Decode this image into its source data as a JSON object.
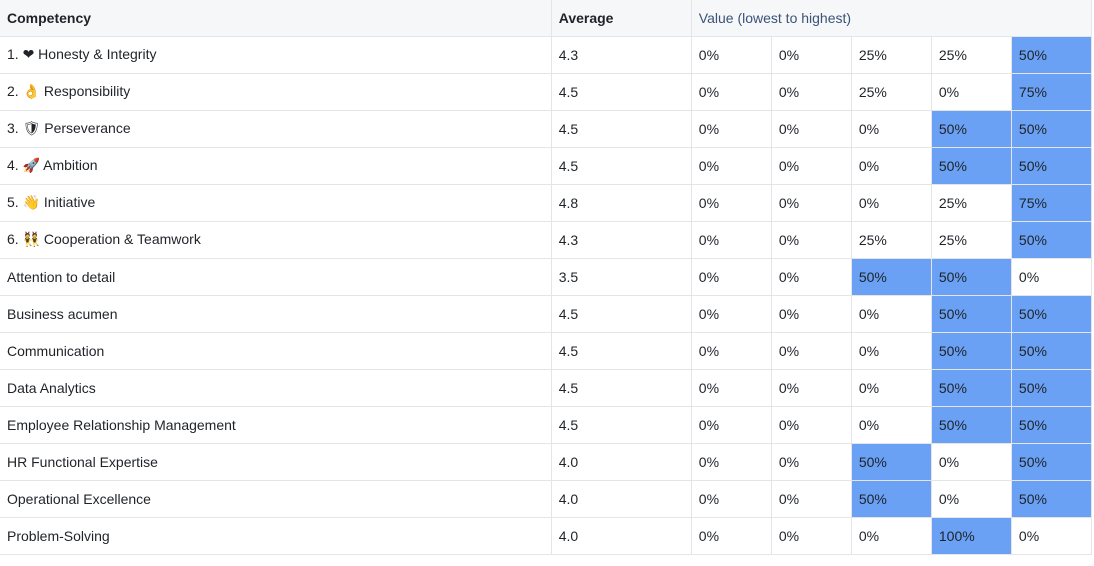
{
  "header": {
    "competency": "Competency",
    "average": "Average",
    "value": "Value (lowest to highest)"
  },
  "colors": {
    "highlight": "#6aa1f4",
    "header_bg": "#f6f7f9",
    "border": "#e3e5e8"
  },
  "rows": [
    {
      "name": "1. ❤ Honesty & Integrity",
      "avg": "4.3",
      "values": [
        "0%",
        "0%",
        "25%",
        "25%",
        "50%"
      ],
      "hl": [
        false,
        false,
        false,
        false,
        true
      ]
    },
    {
      "name": "2. 👌 Responsibility",
      "avg": "4.5",
      "values": [
        "0%",
        "0%",
        "25%",
        "0%",
        "75%"
      ],
      "hl": [
        false,
        false,
        false,
        false,
        true
      ]
    },
    {
      "name": "3. 🛡 Perseverance",
      "avg": "4.5",
      "values": [
        "0%",
        "0%",
        "0%",
        "50%",
        "50%"
      ],
      "hl": [
        false,
        false,
        false,
        true,
        true
      ]
    },
    {
      "name": "4. 🚀 Ambition",
      "avg": "4.5",
      "values": [
        "0%",
        "0%",
        "0%",
        "50%",
        "50%"
      ],
      "hl": [
        false,
        false,
        false,
        true,
        true
      ]
    },
    {
      "name": "5. 👋 Initiative",
      "avg": "4.8",
      "values": [
        "0%",
        "0%",
        "0%",
        "25%",
        "75%"
      ],
      "hl": [
        false,
        false,
        false,
        false,
        true
      ]
    },
    {
      "name": "6. 👯 Cooperation & Teamwork",
      "avg": "4.3",
      "values": [
        "0%",
        "0%",
        "25%",
        "25%",
        "50%"
      ],
      "hl": [
        false,
        false,
        false,
        false,
        true
      ]
    },
    {
      "name": "Attention to detail",
      "avg": "3.5",
      "values": [
        "0%",
        "0%",
        "50%",
        "50%",
        "0%"
      ],
      "hl": [
        false,
        false,
        true,
        true,
        false
      ]
    },
    {
      "name": "Business acumen",
      "avg": "4.5",
      "values": [
        "0%",
        "0%",
        "0%",
        "50%",
        "50%"
      ],
      "hl": [
        false,
        false,
        false,
        true,
        true
      ]
    },
    {
      "name": "Communication",
      "avg": "4.5",
      "values": [
        "0%",
        "0%",
        "0%",
        "50%",
        "50%"
      ],
      "hl": [
        false,
        false,
        false,
        true,
        true
      ]
    },
    {
      "name": "Data Analytics",
      "avg": "4.5",
      "values": [
        "0%",
        "0%",
        "0%",
        "50%",
        "50%"
      ],
      "hl": [
        false,
        false,
        false,
        true,
        true
      ]
    },
    {
      "name": "Employee Relationship Management",
      "avg": "4.5",
      "values": [
        "0%",
        "0%",
        "0%",
        "50%",
        "50%"
      ],
      "hl": [
        false,
        false,
        false,
        true,
        true
      ]
    },
    {
      "name": "HR Functional Expertise",
      "avg": "4.0",
      "values": [
        "0%",
        "0%",
        "50%",
        "0%",
        "50%"
      ],
      "hl": [
        false,
        false,
        true,
        false,
        true
      ]
    },
    {
      "name": "Operational Excellence",
      "avg": "4.0",
      "values": [
        "0%",
        "0%",
        "50%",
        "0%",
        "50%"
      ],
      "hl": [
        false,
        false,
        true,
        false,
        true
      ]
    },
    {
      "name": "Problem-Solving",
      "avg": "4.0",
      "values": [
        "0%",
        "0%",
        "0%",
        "100%",
        "0%"
      ],
      "hl": [
        false,
        false,
        false,
        true,
        false
      ]
    }
  ]
}
